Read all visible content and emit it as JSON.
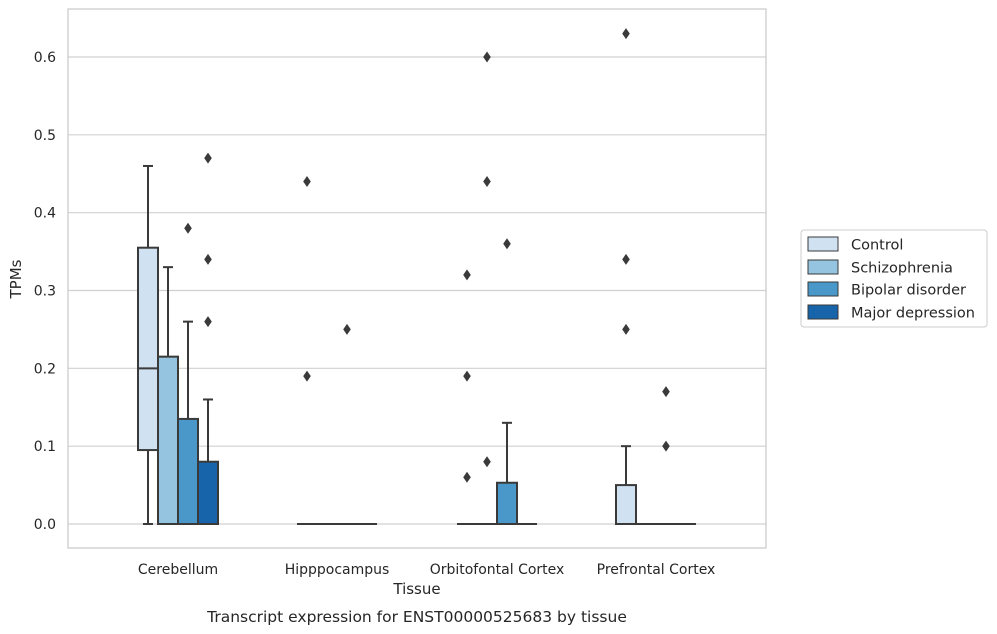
{
  "chart_data": {
    "type": "boxplot",
    "caption": "Transcript expression for ENST00000525683 by tissue",
    "xlabel": "Tissue",
    "ylabel": "TPMs",
    "ylim": [
      -0.03,
      0.665
    ],
    "yticks": [
      0.0,
      0.1,
      0.2,
      0.3,
      0.4,
      0.5,
      0.6
    ],
    "ytick_labels": [
      "0.0",
      "0.1",
      "0.2",
      "0.3",
      "0.4",
      "0.5",
      "0.6"
    ],
    "grid": "horizontal",
    "legend_position": "right",
    "categories": [
      "Cerebellum",
      "Hipppocampus",
      "Orbitofontal Cortex",
      "Prefrontal Cortex"
    ],
    "series": [
      {
        "name": "Control",
        "color": "#d0e1f2",
        "boxes": [
          {
            "whislo": 0.0,
            "q1": 0.095,
            "med": 0.2,
            "q3": 0.355,
            "whishi": 0.46,
            "fliers": []
          },
          {
            "whislo": 0.0,
            "q1": 0.0,
            "med": 0.0,
            "q3": 0.0,
            "whishi": 0.0,
            "fliers": [
              0.19,
              0.44
            ]
          },
          {
            "whislo": 0.0,
            "q1": 0.0,
            "med": 0.0,
            "q3": 0.0,
            "whishi": 0.0,
            "fliers": [
              0.06,
              0.19,
              0.32
            ]
          },
          {
            "whislo": 0.0,
            "q1": 0.0,
            "med": 0.0,
            "q3": 0.05,
            "whishi": 0.1,
            "fliers": [
              0.25,
              0.34,
              0.63
            ]
          }
        ]
      },
      {
        "name": "Schizophrenia",
        "color": "#94c4df",
        "boxes": [
          {
            "whislo": 0.0,
            "q1": 0.0,
            "med": 0.0,
            "q3": 0.215,
            "whishi": 0.33,
            "fliers": []
          },
          {
            "whislo": 0.0,
            "q1": 0.0,
            "med": 0.0,
            "q3": 0.0,
            "whishi": 0.0,
            "fliers": []
          },
          {
            "whislo": 0.0,
            "q1": 0.0,
            "med": 0.0,
            "q3": 0.0,
            "whishi": 0.0,
            "fliers": [
              0.08,
              0.44,
              0.6
            ]
          },
          {
            "whislo": 0.0,
            "q1": 0.0,
            "med": 0.0,
            "q3": 0.0,
            "whishi": 0.0,
            "fliers": []
          }
        ]
      },
      {
        "name": "Bipolar disorder",
        "color": "#4a98c9",
        "boxes": [
          {
            "whislo": 0.0,
            "q1": 0.0,
            "med": 0.0,
            "q3": 0.135,
            "whishi": 0.26,
            "fliers": [
              0.38
            ]
          },
          {
            "whislo": 0.0,
            "q1": 0.0,
            "med": 0.0,
            "q3": 0.0,
            "whishi": 0.0,
            "fliers": [
              0.25
            ]
          },
          {
            "whislo": 0.0,
            "q1": 0.0,
            "med": 0.0,
            "q3": 0.053,
            "whishi": 0.13,
            "fliers": [
              0.36
            ]
          },
          {
            "whislo": 0.0,
            "q1": 0.0,
            "med": 0.0,
            "q3": 0.0,
            "whishi": 0.0,
            "fliers": [
              0.1,
              0.17
            ]
          }
        ]
      },
      {
        "name": "Major depression",
        "color": "#1764ab",
        "boxes": [
          {
            "whislo": 0.0,
            "q1": 0.0,
            "med": 0.0,
            "q3": 0.08,
            "whishi": 0.16,
            "fliers": [
              0.26,
              0.34,
              0.47
            ]
          },
          {
            "whislo": 0.0,
            "q1": 0.0,
            "med": 0.0,
            "q3": 0.0,
            "whishi": 0.0,
            "fliers": []
          },
          {
            "whislo": 0.0,
            "q1": 0.0,
            "med": 0.0,
            "q3": 0.0,
            "whishi": 0.0,
            "fliers": []
          },
          {
            "whislo": 0.0,
            "q1": 0.0,
            "med": 0.0,
            "q3": 0.0,
            "whishi": 0.0,
            "fliers": []
          }
        ]
      }
    ],
    "colors": {
      "edge": "#3a3a3a",
      "grid": "#d0d0d0",
      "frame": "#cccccc"
    }
  }
}
